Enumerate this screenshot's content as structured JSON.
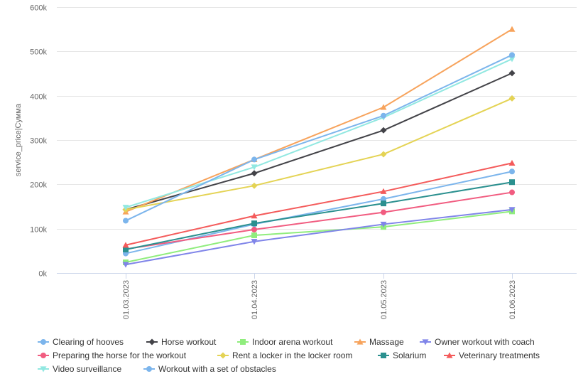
{
  "chart_data": {
    "type": "line",
    "title": "",
    "xlabel": "",
    "ylabel": "service_price|Сумма",
    "categories": [
      "01.03.2023",
      "01.04.2023",
      "01.05.2023",
      "01.06.2023"
    ],
    "ylim": [
      0,
      600000
    ],
    "yticks": [
      {
        "value": 0,
        "label": "0k"
      },
      {
        "value": 100000,
        "label": "100k"
      },
      {
        "value": 200000,
        "label": "200k"
      },
      {
        "value": 300000,
        "label": "300k"
      },
      {
        "value": 400000,
        "label": "400k"
      },
      {
        "value": 500000,
        "label": "500k"
      },
      {
        "value": 600000,
        "label": "600k"
      }
    ],
    "grid": "horizontal",
    "legend_position": "bottom-left",
    "series": [
      {
        "name": "Clearing of hooves",
        "color": "#7cb5ec",
        "marker": "circle",
        "values": [
          44000,
          110000,
          167000,
          229000
        ]
      },
      {
        "name": "Horse workout",
        "color": "#434348",
        "marker": "diamond",
        "values": [
          143000,
          225000,
          322000,
          451000
        ]
      },
      {
        "name": "Indoor arena workout",
        "color": "#90ed7d",
        "marker": "square",
        "values": [
          24000,
          85000,
          104000,
          139000
        ]
      },
      {
        "name": "Massage",
        "color": "#f7a35c",
        "marker": "triangle",
        "values": [
          138000,
          256000,
          374000,
          550000
        ]
      },
      {
        "name": "Owner workout with coach",
        "color": "#8085e9",
        "marker": "triangle-down",
        "values": [
          19000,
          71000,
          110000,
          143000
        ]
      },
      {
        "name": "Preparing the horse for the workout",
        "color": "#f15c80",
        "marker": "circle",
        "values": [
          54000,
          98000,
          137000,
          182000
        ]
      },
      {
        "name": "Rent a locker in the locker room",
        "color": "#e4d354",
        "marker": "diamond",
        "values": [
          143000,
          197000,
          268000,
          394000
        ]
      },
      {
        "name": "Solarium",
        "color": "#2b908f",
        "marker": "square",
        "values": [
          53000,
          112000,
          157000,
          205000
        ]
      },
      {
        "name": "Veterinary treatments",
        "color": "#f45b5b",
        "marker": "triangle",
        "values": [
          63000,
          129000,
          184000,
          248000
        ]
      },
      {
        "name": "Video surveillance",
        "color": "#91e8e1",
        "marker": "triangle-down",
        "values": [
          148000,
          239000,
          351000,
          483000
        ]
      },
      {
        "name": "Workout with a set of obstacles",
        "color": "#7cb5ec",
        "marker": "circle",
        "values": [
          118000,
          256000,
          355000,
          492000
        ]
      }
    ]
  }
}
